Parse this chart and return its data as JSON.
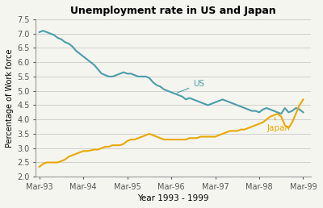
{
  "title": "Unemployment rate in US and Japan",
  "xlabel": "Year 1993 - 1999",
  "ylabel": "Percentage of Work force",
  "ylim": [
    2.0,
    7.5
  ],
  "yticks": [
    2.0,
    2.5,
    3.0,
    3.5,
    4.0,
    4.5,
    5.0,
    5.5,
    6.0,
    6.5,
    7.0,
    7.5
  ],
  "xtick_labels": [
    "Mar-93",
    "Mar-94",
    "Mar-95",
    "Mar-96",
    "Mar-97",
    "Mar-98",
    "Mar-99"
  ],
  "us_color": "#4a9daa",
  "japan_color": "#e8a800",
  "us_data": [
    7.05,
    7.1,
    7.05,
    7.0,
    6.95,
    6.85,
    6.8,
    6.7,
    6.65,
    6.55,
    6.4,
    6.3,
    6.2,
    6.1,
    6.0,
    5.9,
    5.75,
    5.6,
    5.55,
    5.5,
    5.5,
    5.55,
    5.6,
    5.65,
    5.6,
    5.6,
    5.55,
    5.5,
    5.5,
    5.5,
    5.45,
    5.3,
    5.2,
    5.15,
    5.05,
    5.0,
    4.95,
    4.9,
    4.85,
    4.8,
    4.7,
    4.75,
    4.7,
    4.65,
    4.6,
    4.55,
    4.5,
    4.55,
    4.6,
    4.65,
    4.7,
    4.65,
    4.6,
    4.55,
    4.5,
    4.45,
    4.4,
    4.35,
    4.3,
    4.3,
    4.25,
    4.35,
    4.4,
    4.35,
    4.3,
    4.25,
    4.2,
    4.4,
    4.25,
    4.3,
    4.4,
    4.35,
    4.25
  ],
  "japan_data": [
    2.35,
    2.45,
    2.5,
    2.5,
    2.5,
    2.5,
    2.55,
    2.6,
    2.7,
    2.75,
    2.8,
    2.85,
    2.9,
    2.9,
    2.92,
    2.95,
    2.95,
    3.0,
    3.05,
    3.05,
    3.1,
    3.1,
    3.1,
    3.15,
    3.25,
    3.3,
    3.3,
    3.35,
    3.4,
    3.45,
    3.5,
    3.45,
    3.4,
    3.35,
    3.3,
    3.3,
    3.3,
    3.3,
    3.3,
    3.3,
    3.3,
    3.35,
    3.35,
    3.35,
    3.4,
    3.4,
    3.4,
    3.4,
    3.4,
    3.45,
    3.5,
    3.55,
    3.6,
    3.6,
    3.6,
    3.65,
    3.65,
    3.7,
    3.75,
    3.8,
    3.85,
    3.9,
    4.0,
    4.1,
    4.15,
    4.2,
    4.1,
    3.8,
    3.7,
    3.9,
    4.2,
    4.5,
    4.7
  ],
  "us_label": "US",
  "japan_label": "Japan",
  "background_color": "#f5f5f0",
  "plot_bg_color": "#f5f5f0"
}
